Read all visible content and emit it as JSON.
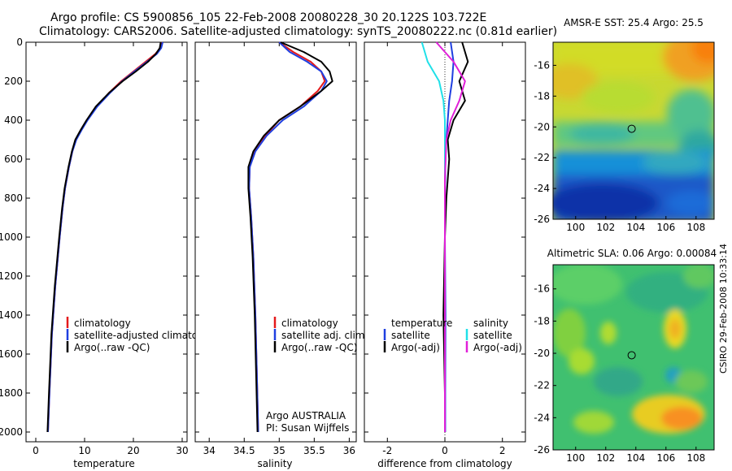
{
  "header": {
    "line1": "Argo profile: CS 5900856_105 22-Feb-2008 20080228_30 20.122S 103.722E",
    "line2": "Climatology: CARS2006. Satellite-adjusted climatology: synTS_20080222.nc (0.81d earlier)"
  },
  "side_label": "CSIRO 29-Feb-2008 10:33:14",
  "panels": {
    "temperature": {
      "xlabel": "temperature",
      "legend": [
        "climatology",
        "satellite-adjusted climatology",
        "Argo(..raw -QC)"
      ]
    },
    "salinity": {
      "xlabel": "salinity",
      "legend": [
        "climatology",
        "satellite adj. clim.",
        "Argo(..raw -QC)"
      ],
      "note1": "Argo AUSTRALIA",
      "note2": "PI: Susan Wijffels"
    },
    "difference": {
      "xlabel": "difference from climatology",
      "legend_left_title": "temperature",
      "legend_left": [
        "satellite",
        "Argo(-adj)"
      ],
      "legend_right_title": "salinity",
      "legend_right": [
        "satellite",
        "Argo(-adj)"
      ]
    },
    "sst_map": {
      "title": "AMSR-E SST: 25.4 Argo: 25.5"
    },
    "sla_map": {
      "title": "Altimetric SLA: 0.06 Argo: 0.00084"
    }
  },
  "colors": {
    "climatology": "#e41a1c",
    "satellite": "#1f3fe0",
    "argo": "#000000",
    "sal_satellite": "#20e0e8",
    "sal_argo": "#e020d8"
  },
  "chart_data": [
    {
      "type": "line",
      "title": "",
      "xlabel": "temperature",
      "ylabel": "",
      "xlim": [
        -2,
        31
      ],
      "ylim": [
        2050,
        0
      ],
      "x_ticks": [
        0,
        10,
        20,
        30
      ],
      "y_ticks": [
        0,
        200,
        400,
        600,
        800,
        1000,
        1200,
        1400,
        1600,
        1800,
        2000
      ],
      "series": [
        {
          "name": "climatology",
          "color": "#e41a1c",
          "x": [
            25.8,
            25.5,
            24.5,
            22.5,
            20,
            17.5,
            15,
            12.5,
            10.5,
            9.3,
            8.2,
            7.5,
            6.8,
            6.0,
            5.5,
            4.9,
            4.0,
            3.3,
            2.8,
            2.5
          ],
          "y": [
            0,
            30,
            60,
            100,
            150,
            200,
            260,
            330,
            400,
            450,
            500,
            560,
            640,
            750,
            850,
            1000,
            1250,
            1500,
            1800,
            2000
          ]
        },
        {
          "name": "satellite-adjusted climatology",
          "color": "#1f3fe0",
          "x": [
            26.0,
            25.7,
            24.8,
            22.8,
            20.2,
            17.7,
            15.2,
            12.6,
            10.6,
            9.4,
            8.3,
            7.5,
            6.8,
            6.0,
            5.5,
            4.9,
            4.0,
            3.3,
            2.8,
            2.5
          ],
          "y": [
            0,
            30,
            60,
            100,
            150,
            200,
            260,
            330,
            400,
            450,
            500,
            560,
            640,
            750,
            850,
            1000,
            1250,
            1500,
            1800,
            2000
          ]
        },
        {
          "name": "Argo(..raw -QC)",
          "color": "#000000",
          "x": [
            25.6,
            25.4,
            24.6,
            23.0,
            20.5,
            17.8,
            15.0,
            12.3,
            10.4,
            9.2,
            8.1,
            7.4,
            6.7,
            5.9,
            5.4,
            4.8,
            3.9,
            3.2,
            2.7,
            2.4
          ],
          "y": [
            0,
            30,
            60,
            100,
            150,
            200,
            260,
            330,
            400,
            450,
            500,
            560,
            640,
            750,
            850,
            1000,
            1250,
            1500,
            1800,
            2000
          ]
        }
      ]
    },
    {
      "type": "line",
      "title": "",
      "xlabel": "salinity",
      "ylabel": "",
      "xlim": [
        33.8,
        36.1
      ],
      "ylim": [
        2050,
        0
      ],
      "x_ticks": [
        34,
        34.5,
        35,
        35.5,
        36
      ],
      "series": [
        {
          "name": "climatology",
          "color": "#e41a1c",
          "x": [
            35.0,
            35.2,
            35.45,
            35.6,
            35.65,
            35.55,
            35.3,
            35.0,
            34.8,
            34.65,
            34.58,
            34.57,
            34.6,
            34.63,
            34.66,
            34.68,
            34.7
          ],
          "y": [
            0,
            50,
            100,
            150,
            200,
            250,
            330,
            400,
            480,
            560,
            640,
            750,
            900,
            1100,
            1400,
            1700,
            2000
          ]
        },
        {
          "name": "satellite adj. clim.",
          "color": "#1f3fe0",
          "x": [
            35.0,
            35.15,
            35.4,
            35.6,
            35.68,
            35.6,
            35.35,
            35.05,
            34.82,
            34.66,
            34.58,
            34.57,
            34.6,
            34.63,
            34.66,
            34.68,
            34.7
          ],
          "y": [
            0,
            50,
            100,
            150,
            200,
            250,
            330,
            400,
            480,
            560,
            640,
            750,
            900,
            1100,
            1400,
            1700,
            2000
          ]
        },
        {
          "name": "Argo(..raw -QC)",
          "color": "#000000",
          "x": [
            35.02,
            35.35,
            35.6,
            35.72,
            35.76,
            35.6,
            35.3,
            35.0,
            34.78,
            34.63,
            34.56,
            34.56,
            34.59,
            34.62,
            34.65,
            34.67,
            34.69
          ],
          "y": [
            0,
            50,
            100,
            150,
            200,
            250,
            330,
            400,
            480,
            560,
            640,
            750,
            900,
            1100,
            1400,
            1700,
            2000
          ]
        }
      ]
    },
    {
      "type": "line",
      "title": "",
      "xlabel": "difference from climatology",
      "ylabel": "",
      "xlim": [
        -2.8,
        2.8
      ],
      "ylim": [
        2050,
        0
      ],
      "x_ticks": [
        -2,
        0,
        2
      ],
      "series": [
        {
          "name": "temperature satellite",
          "color": "#1f3fe0",
          "x": [
            0.2,
            0.3,
            0.25,
            0.15,
            0.1,
            0.05,
            0.02,
            0.0,
            0.0,
            0.02,
            0.01,
            0.01
          ],
          "y": [
            0,
            100,
            200,
            300,
            400,
            500,
            600,
            800,
            1000,
            1400,
            1800,
            2000
          ]
        },
        {
          "name": "temperature Argo(-adj)",
          "color": "#000000",
          "x": [
            0.6,
            0.8,
            0.5,
            0.7,
            0.3,
            0.1,
            0.15,
            0.05,
            0.0,
            -0.05,
            0.0,
            0.0
          ],
          "y": [
            0,
            100,
            200,
            300,
            400,
            500,
            600,
            800,
            1000,
            1400,
            1800,
            2000
          ]
        },
        {
          "name": "salinity satellite",
          "color": "#20e0e8",
          "x": [
            -0.8,
            -0.6,
            -0.2,
            -0.05,
            0.0,
            0.0,
            0.0,
            0.0,
            0.0,
            0.0,
            0.0
          ],
          "y": [
            0,
            100,
            200,
            300,
            400,
            500,
            700,
            1000,
            1400,
            1800,
            2000
          ]
        },
        {
          "name": "salinity Argo(-adj)",
          "color": "#e020d8",
          "x": [
            -0.3,
            0.3,
            0.7,
            0.5,
            0.2,
            0.05,
            0.0,
            0.0,
            0.0,
            0.0,
            0.0
          ],
          "y": [
            0,
            100,
            200,
            300,
            400,
            500,
            700,
            1000,
            1400,
            1800,
            2000
          ]
        }
      ]
    },
    {
      "type": "heatmap",
      "title": "AMSR-E SST: 25.4 Argo: 25.5",
      "xlim": [
        98.5,
        109.2
      ],
      "ylim": [
        -26,
        -14.5
      ],
      "x_ticks": [
        100,
        102,
        104,
        106,
        108
      ],
      "y_ticks": [
        -16,
        -18,
        -20,
        -22,
        -24,
        -26
      ],
      "marker": {
        "x": 103.722,
        "y": -20.122
      }
    },
    {
      "type": "heatmap",
      "title": "Altimetric SLA: 0.06 Argo: 0.00084",
      "xlim": [
        98.5,
        109.2
      ],
      "ylim": [
        -26,
        -14.5
      ],
      "x_ticks": [
        100,
        102,
        104,
        106,
        108
      ],
      "y_ticks": [
        -16,
        -18,
        -20,
        -22,
        -24,
        -26
      ],
      "marker": {
        "x": 103.722,
        "y": -20.122
      }
    }
  ]
}
